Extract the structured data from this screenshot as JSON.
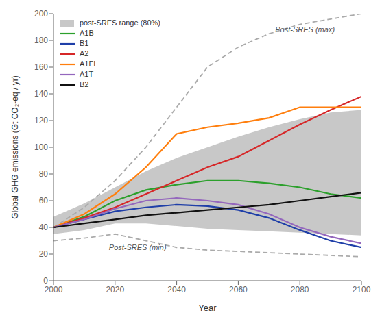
{
  "chart_data": {
    "type": "line",
    "xlabel": "Year",
    "ylabel": "Global GHG emissions (Gt CO₂-eq / yr)",
    "x": [
      2000,
      2010,
      2020,
      2030,
      2040,
      2050,
      2060,
      2070,
      2080,
      2090,
      2100
    ],
    "xlim": [
      2000,
      2100
    ],
    "xticks": [
      2000,
      2020,
      2040,
      2060,
      2080,
      2100
    ],
    "ylim": [
      0,
      200
    ],
    "yticks": [
      0,
      20,
      40,
      60,
      80,
      100,
      120,
      140,
      160,
      180,
      200
    ],
    "grid": false,
    "legend": "upper left",
    "series": [
      {
        "name": "post-SRES range (80%)",
        "type": "area",
        "color": "#BEBEBE",
        "lower": [
          35,
          38,
          43,
          43,
          41,
          39,
          38,
          37,
          36,
          35,
          34
        ],
        "upper": [
          48,
          58,
          70,
          82,
          92,
          100,
          108,
          115,
          121,
          126,
          128
        ]
      },
      {
        "type": "line",
        "line_style": "dashed",
        "color": "#AAAAAA",
        "values": [
          40,
          55,
          75,
          100,
          130,
          160,
          175,
          185,
          192,
          196,
          200
        ]
      },
      {
        "type": "line",
        "line_style": "dashed",
        "color": "#AAAAAA",
        "values": [
          30,
          32,
          35,
          30,
          25,
          23,
          22,
          21,
          20,
          19,
          18
        ]
      },
      {
        "name": "A1B",
        "type": "line",
        "color": "#2ca02c",
        "values": [
          40,
          48,
          60,
          68,
          72,
          75,
          75,
          73,
          70,
          65,
          62
        ]
      },
      {
        "name": "B1",
        "type": "line",
        "color": "#1f3fa8",
        "values": [
          40,
          46,
          52,
          55,
          57,
          56,
          53,
          47,
          38,
          30,
          25
        ]
      },
      {
        "name": "A2",
        "type": "line",
        "color": "#d62728",
        "values": [
          40,
          47,
          55,
          65,
          75,
          85,
          93,
          105,
          117,
          128,
          138
        ]
      },
      {
        "name": "A1FI",
        "type": "line",
        "color": "#ff7f0e",
        "values": [
          40,
          50,
          65,
          85,
          110,
          115,
          118,
          122,
          130,
          130,
          130
        ]
      },
      {
        "name": "A1T",
        "type": "line",
        "color": "#9467bd",
        "values": [
          40,
          46,
          54,
          60,
          62,
          60,
          57,
          50,
          40,
          33,
          28
        ]
      },
      {
        "name": "B2",
        "type": "line",
        "color": "#111111",
        "values": [
          40,
          43,
          46,
          49,
          51,
          53,
          55,
          57,
          60,
          63,
          66
        ]
      }
    ],
    "annotations": [
      {
        "text": "Post-SRES (max)",
        "x": 2072,
        "y": 185
      },
      {
        "text": "Post-SRES (min)",
        "x": 2018,
        "y": 22
      }
    ]
  }
}
